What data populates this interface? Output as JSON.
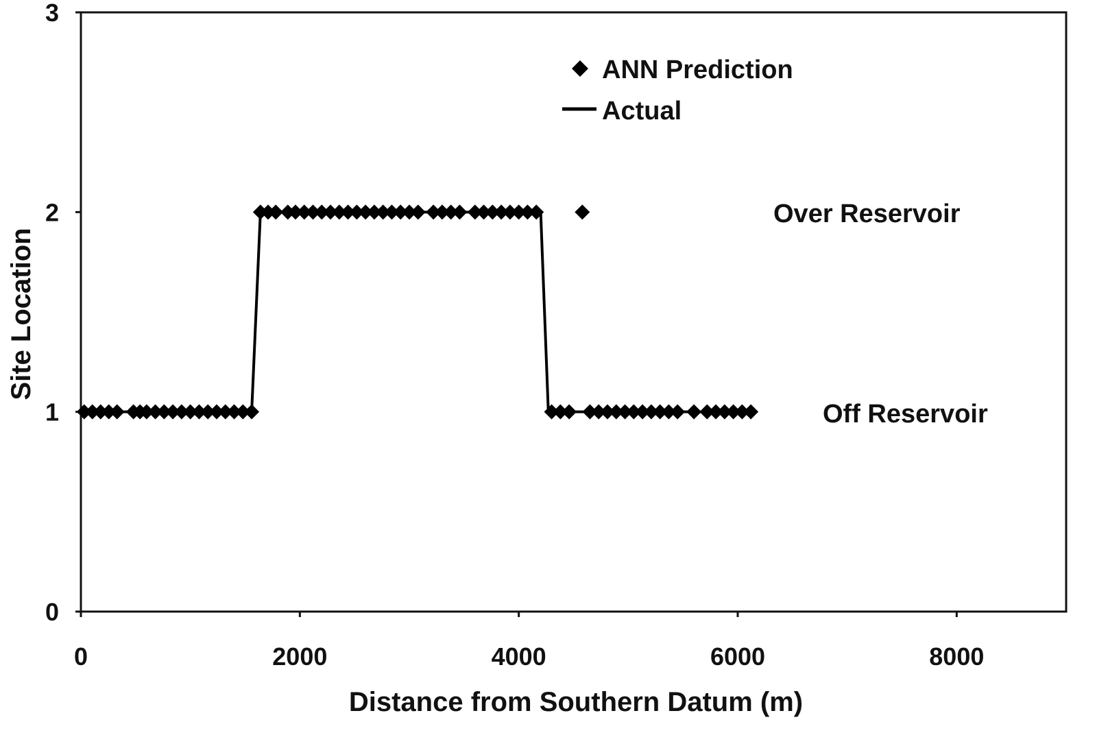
{
  "chart_data": {
    "type": "scatter",
    "title": "",
    "xlabel": "Distance from Southern Datum (m)",
    "ylabel": "Site Location",
    "xlim": [
      0,
      9000
    ],
    "ylim": [
      0,
      3
    ],
    "xticks": [
      0,
      2000,
      4000,
      6000,
      8000
    ],
    "xtick_labels": [
      "0",
      "2000",
      "4000",
      "6000",
      "8000"
    ],
    "yticks": [
      0,
      1,
      2,
      3
    ],
    "ytick_labels": [
      "0",
      "1",
      "2",
      "3"
    ],
    "grid": false,
    "legend_position": "top-center",
    "annotations": [
      {
        "text": "Over Reservoir",
        "x": 6400,
        "y": 2
      },
      {
        "text": "Off Reservoir",
        "x": 6850,
        "y": 1
      }
    ],
    "series": [
      {
        "name": "ANN Prediction",
        "marker": "diamond",
        "color": "#000000",
        "x": [
          30,
          105,
          180,
          255,
          330,
          480,
          540,
          600,
          680,
          760,
          840,
          920,
          1000,
          1080,
          1160,
          1240,
          1320,
          1400,
          1480,
          1560,
          1640,
          1710,
          1780,
          1890,
          1960,
          2040,
          2120,
          2200,
          2280,
          2360,
          2440,
          2520,
          2600,
          2680,
          2760,
          2840,
          2920,
          3000,
          3080,
          3220,
          3300,
          3380,
          3460,
          3600,
          3680,
          3760,
          3840,
          3920,
          4000,
          4080,
          4160,
          4580,
          4300,
          4380,
          4460,
          4650,
          4730,
          4810,
          4890,
          4970,
          5050,
          5130,
          5210,
          5290,
          5370,
          5450,
          5600,
          5720,
          5800,
          5880,
          5960,
          6040,
          6120
        ],
        "y": [
          1,
          1,
          1,
          1,
          1,
          1,
          1,
          1,
          1,
          1,
          1,
          1,
          1,
          1,
          1,
          1,
          1,
          1,
          1,
          1,
          2,
          2,
          2,
          2,
          2,
          2,
          2,
          2,
          2,
          2,
          2,
          2,
          2,
          2,
          2,
          2,
          2,
          2,
          2,
          2,
          2,
          2,
          2,
          2,
          2,
          2,
          2,
          2,
          2,
          2,
          2,
          2,
          1,
          1,
          1,
          1,
          1,
          1,
          1,
          1,
          1,
          1,
          1,
          1,
          1,
          1,
          1,
          1,
          1,
          1,
          1,
          1,
          1
        ]
      },
      {
        "name": "Actual",
        "type": "line",
        "color": "#000000",
        "x": [
          0,
          1560,
          1640,
          4200,
          4270,
          6130
        ],
        "y": [
          1,
          1,
          2,
          2,
          1,
          1
        ]
      }
    ]
  }
}
